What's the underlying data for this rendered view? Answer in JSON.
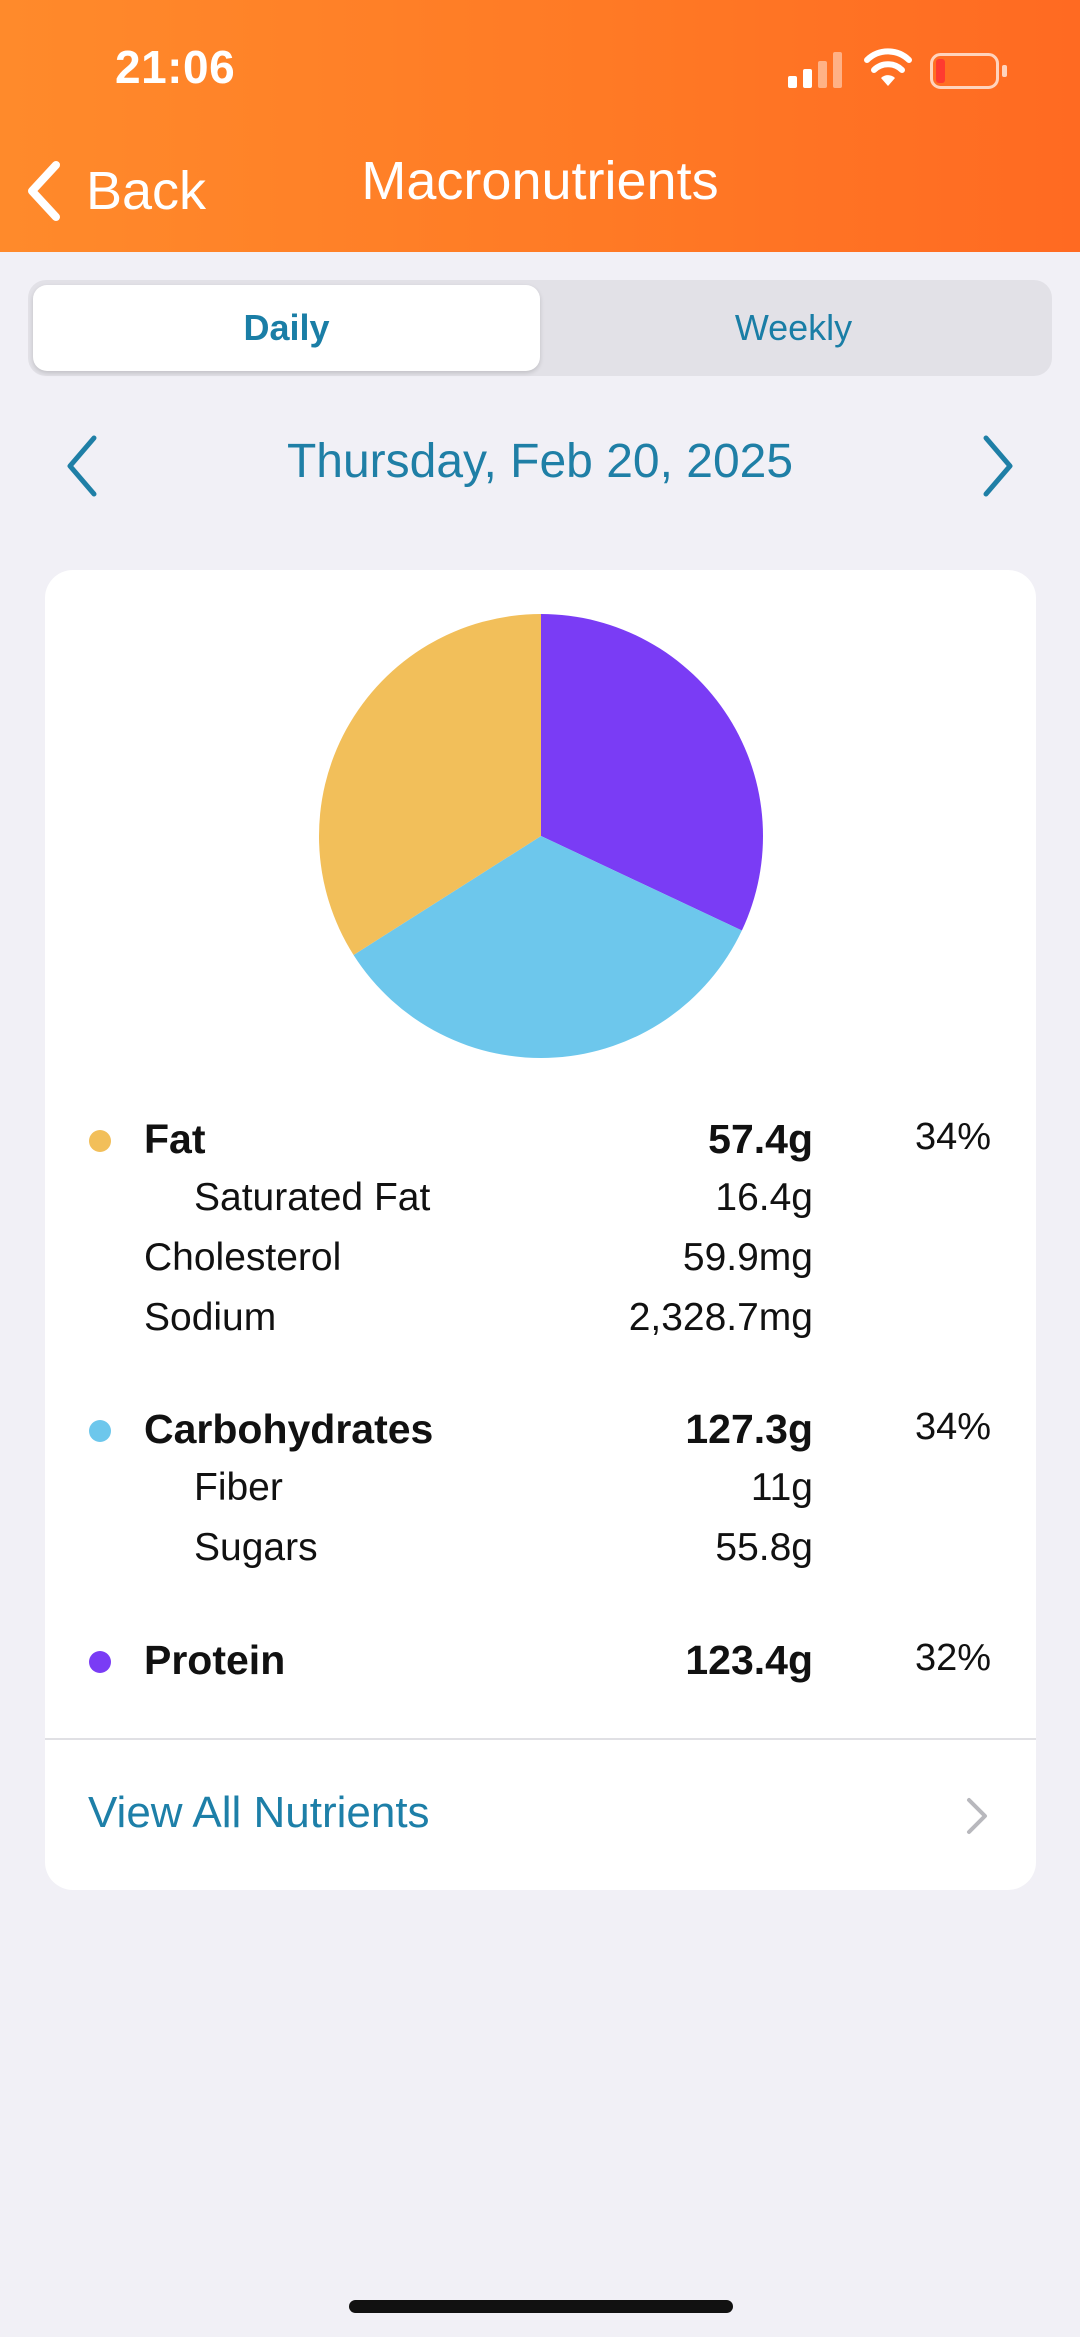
{
  "status_bar": {
    "time": "21:06"
  },
  "nav": {
    "back_label": "Back",
    "title": "Macronutrients"
  },
  "segments": {
    "daily": "Daily",
    "weekly": "Weekly",
    "selected": "Daily"
  },
  "date": {
    "label": "Thursday, Feb 20, 2025"
  },
  "colors": {
    "header": "#ff7a25",
    "accent_text": "#1a7ea6",
    "fat": "#f2bf5a",
    "carbohydrates": "#6dc7ec",
    "protein": "#7a3cf5"
  },
  "nutrients": {
    "fat": {
      "label": "Fat",
      "amount": "57.4g",
      "percent": "34%"
    },
    "saturated_fat": {
      "label": "Saturated Fat",
      "amount": "16.4g"
    },
    "cholesterol": {
      "label": "Cholesterol",
      "amount": "59.9mg"
    },
    "sodium": {
      "label": "Sodium",
      "amount": "2,328.7mg"
    },
    "carbohydrates": {
      "label": "Carbohydrates",
      "amount": "127.3g",
      "percent": "34%"
    },
    "fiber": {
      "label": "Fiber",
      "amount": "11g"
    },
    "sugars": {
      "label": "Sugars",
      "amount": "55.8g"
    },
    "protein": {
      "label": "Protein",
      "amount": "123.4g",
      "percent": "32%"
    }
  },
  "footer": {
    "view_all_label": "View All Nutrients"
  },
  "icons": {
    "back": "chevron-left-icon",
    "prev_date": "chevron-left-icon",
    "next_date": "chevron-right-icon",
    "view_all": "chevron-right-icon",
    "signal": "cellular-signal-icon",
    "wifi": "wifi-icon",
    "battery": "battery-low-icon"
  },
  "chart_data": {
    "type": "pie",
    "categories": [
      "Protein",
      "Carbohydrates",
      "Fat"
    ],
    "values": [
      32,
      34,
      34
    ],
    "colors": [
      "#7a3cf5",
      "#6dc7ec",
      "#f2bf5a"
    ],
    "start": "12 o'clock, clockwise",
    "title": "",
    "legend": "below"
  }
}
